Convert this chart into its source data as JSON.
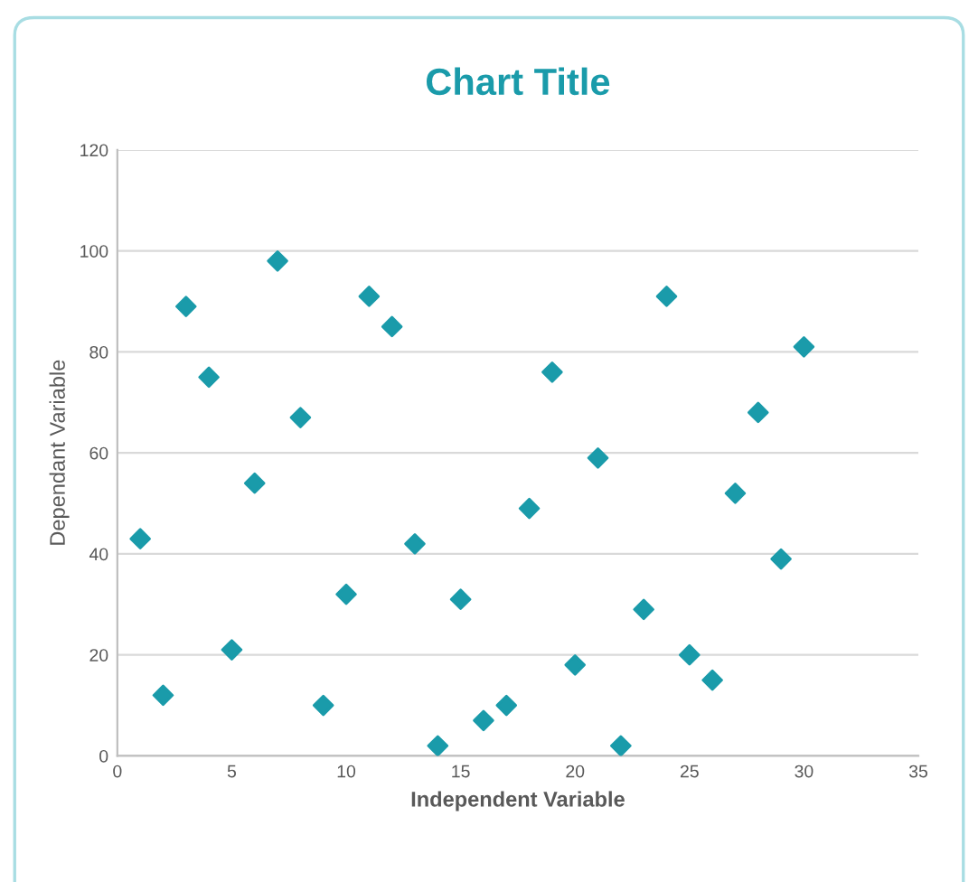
{
  "chart_data": {
    "type": "scatter",
    "title": "Chart Title",
    "xlabel": "Independent Variable",
    "ylabel": "Dependant Variable",
    "x": [
      1,
      2,
      3,
      4,
      5,
      6,
      7,
      8,
      9,
      10,
      11,
      12,
      13,
      14,
      15,
      16,
      17,
      18,
      19,
      20,
      21,
      22,
      23,
      24,
      25,
      26,
      27,
      28,
      29,
      30
    ],
    "series": [
      {
        "color": "#1a9baa",
        "values": [
          43,
          12,
          89,
          75,
          21,
          54,
          98,
          67,
          10,
          32,
          91,
          85,
          42,
          2,
          31,
          7,
          10,
          49,
          76,
          18,
          59,
          2,
          29,
          91,
          20,
          15,
          52,
          68,
          39,
          81
        ]
      }
    ],
    "xlim": [
      0,
      35
    ],
    "xticks": [
      0,
      5,
      10,
      15,
      20,
      25,
      30,
      35
    ],
    "ylim": [
      0,
      120
    ],
    "yticks": [
      0,
      20,
      40,
      60,
      80,
      100,
      120
    ],
    "grid": "y",
    "marker": "diamond",
    "legend": false
  }
}
